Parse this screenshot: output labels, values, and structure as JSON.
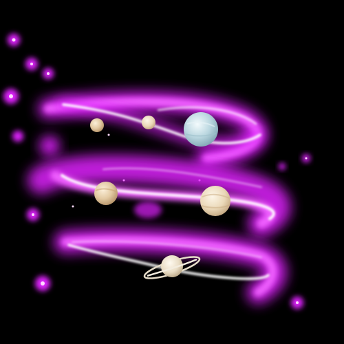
{
  "scene": {
    "background": "#000000",
    "glow_color": "#e020ff",
    "core_color": "#ffffff",
    "elements": [
      "glowing-spiral-ring-top",
      "glowing-spiral-ring-middle",
      "glowing-spiral-ring-bottom",
      "small-tan-planet",
      "small-tan-planet-2",
      "ice-blue-planet",
      "tan-planet-middle-left",
      "tan-planet-middle-right",
      "ringed-planet"
    ]
  }
}
